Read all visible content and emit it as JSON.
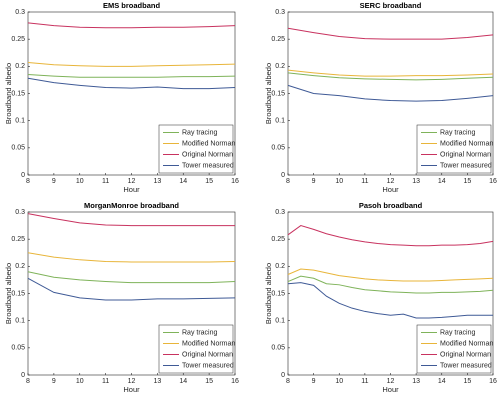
{
  "chart_data": [
    {
      "type": "line",
      "title": "EMS broadband",
      "x_label": "Hour",
      "y_label": "Broadband albedo",
      "x": [
        8,
        9,
        10,
        11,
        12,
        13,
        14,
        15,
        16
      ],
      "xlim": [
        8,
        16
      ],
      "xticks": [
        8,
        9,
        10,
        11,
        12,
        13,
        14,
        15,
        16
      ],
      "ylim": [
        0,
        0.3
      ],
      "yticks": [
        0,
        0.05,
        0.1,
        0.15,
        0.2,
        0.25,
        0.3
      ],
      "grid": false,
      "legend": "lower right",
      "series": [
        {
          "name": "Ray tracing",
          "color": "#7fb35a",
          "values": [
            0.185,
            0.182,
            0.18,
            0.18,
            0.18,
            0.18,
            0.181,
            0.181,
            0.182
          ]
        },
        {
          "name": "Modified Norman",
          "color": "#e8b53a",
          "values": [
            0.207,
            0.203,
            0.201,
            0.2,
            0.2,
            0.201,
            0.202,
            0.203,
            0.204
          ]
        },
        {
          "name": "Original Norman",
          "color": "#c8325f",
          "values": [
            0.28,
            0.275,
            0.272,
            0.271,
            0.271,
            0.272,
            0.272,
            0.273,
            0.275
          ]
        },
        {
          "name": "Tower measured",
          "color": "#3f5a96",
          "values": [
            0.178,
            0.17,
            0.165,
            0.161,
            0.16,
            0.162,
            0.159,
            0.159,
            0.161
          ]
        }
      ]
    },
    {
      "type": "line",
      "title": "SERC broadband",
      "x_label": "Hour",
      "y_label": "Broadband albedo",
      "x": [
        8,
        9,
        10,
        11,
        12,
        13,
        14,
        15,
        16
      ],
      "xlim": [
        8,
        16
      ],
      "xticks": [
        8,
        9,
        10,
        11,
        12,
        13,
        14,
        15,
        16
      ],
      "ylim": [
        0,
        0.3
      ],
      "yticks": [
        0,
        0.05,
        0.1,
        0.15,
        0.2,
        0.25,
        0.3
      ],
      "grid": false,
      "legend": "lower right",
      "series": [
        {
          "name": "Ray tracing",
          "color": "#7fb35a",
          "values": [
            0.188,
            0.183,
            0.179,
            0.177,
            0.176,
            0.175,
            0.176,
            0.178,
            0.18
          ]
        },
        {
          "name": "Modified Norman",
          "color": "#e8b53a",
          "values": [
            0.193,
            0.188,
            0.184,
            0.182,
            0.182,
            0.183,
            0.183,
            0.184,
            0.186
          ]
        },
        {
          "name": "Original Norman",
          "color": "#c8325f",
          "values": [
            0.27,
            0.262,
            0.255,
            0.251,
            0.25,
            0.25,
            0.25,
            0.253,
            0.258
          ]
        },
        {
          "name": "Tower measured",
          "color": "#3f5a96",
          "values": [
            0.165,
            0.15,
            0.146,
            0.14,
            0.137,
            0.136,
            0.137,
            0.141,
            0.146
          ]
        }
      ]
    },
    {
      "type": "line",
      "title": "MorganMonroe broadband",
      "x_label": "Hour",
      "y_label": "Broadband albedo",
      "x": [
        8,
        9,
        10,
        11,
        12,
        13,
        14,
        15,
        16
      ],
      "xlim": [
        8,
        16
      ],
      "xticks": [
        8,
        9,
        10,
        11,
        12,
        13,
        14,
        15,
        16
      ],
      "ylim": [
        0,
        0.3
      ],
      "yticks": [
        0,
        0.05,
        0.1,
        0.15,
        0.2,
        0.25,
        0.3
      ],
      "grid": false,
      "legend": "lower right",
      "series": [
        {
          "name": "Ray tracing",
          "color": "#7fb35a",
          "values": [
            0.19,
            0.18,
            0.175,
            0.172,
            0.17,
            0.17,
            0.17,
            0.17,
            0.172
          ]
        },
        {
          "name": "Modified Norman",
          "color": "#e8b53a",
          "values": [
            0.225,
            0.217,
            0.212,
            0.209,
            0.208,
            0.208,
            0.208,
            0.208,
            0.209
          ]
        },
        {
          "name": "Original Norman",
          "color": "#c8325f",
          "values": [
            0.297,
            0.288,
            0.28,
            0.276,
            0.275,
            0.275,
            0.275,
            0.275,
            0.275
          ]
        },
        {
          "name": "Tower measured",
          "color": "#3f5a96",
          "values": [
            0.178,
            0.152,
            0.142,
            0.138,
            0.138,
            0.14,
            0.14,
            0.141,
            0.142
          ]
        }
      ]
    },
    {
      "type": "line",
      "title": "Pasoh broadband",
      "x_label": "Hour",
      "y_label": "Broadband albedo",
      "x": [
        8,
        8.5,
        9,
        9.5,
        10,
        10.5,
        11,
        11.5,
        12,
        12.5,
        13,
        13.5,
        14,
        14.5,
        15,
        15.5,
        16
      ],
      "xlim": [
        8,
        16
      ],
      "xticks": [
        8,
        9,
        10,
        11,
        12,
        13,
        14,
        15,
        16
      ],
      "ylim": [
        0,
        0.3
      ],
      "yticks": [
        0,
        0.05,
        0.1,
        0.15,
        0.2,
        0.25,
        0.3
      ],
      "grid": false,
      "legend": "lower right",
      "series": [
        {
          "name": "Ray tracing",
          "color": "#7fb35a",
          "values": [
            0.172,
            0.182,
            0.178,
            0.168,
            0.166,
            0.161,
            0.157,
            0.155,
            0.153,
            0.152,
            0.151,
            0.151,
            0.152,
            0.152,
            0.153,
            0.154,
            0.156
          ]
        },
        {
          "name": "Modified Norman",
          "color": "#e8b53a",
          "values": [
            0.185,
            0.195,
            0.193,
            0.188,
            0.183,
            0.18,
            0.177,
            0.175,
            0.174,
            0.173,
            0.173,
            0.173,
            0.174,
            0.175,
            0.176,
            0.177,
            0.178
          ]
        },
        {
          "name": "Original Norman",
          "color": "#c8325f",
          "values": [
            0.258,
            0.275,
            0.268,
            0.26,
            0.254,
            0.249,
            0.245,
            0.242,
            0.24,
            0.239,
            0.238,
            0.238,
            0.239,
            0.239,
            0.24,
            0.242,
            0.246
          ]
        },
        {
          "name": "Tower measured",
          "color": "#3f5a96",
          "values": [
            0.168,
            0.17,
            0.165,
            0.145,
            0.132,
            0.123,
            0.117,
            0.113,
            0.11,
            0.112,
            0.105,
            0.105,
            0.106,
            0.108,
            0.11,
            0.11,
            0.11
          ]
        }
      ]
    }
  ]
}
